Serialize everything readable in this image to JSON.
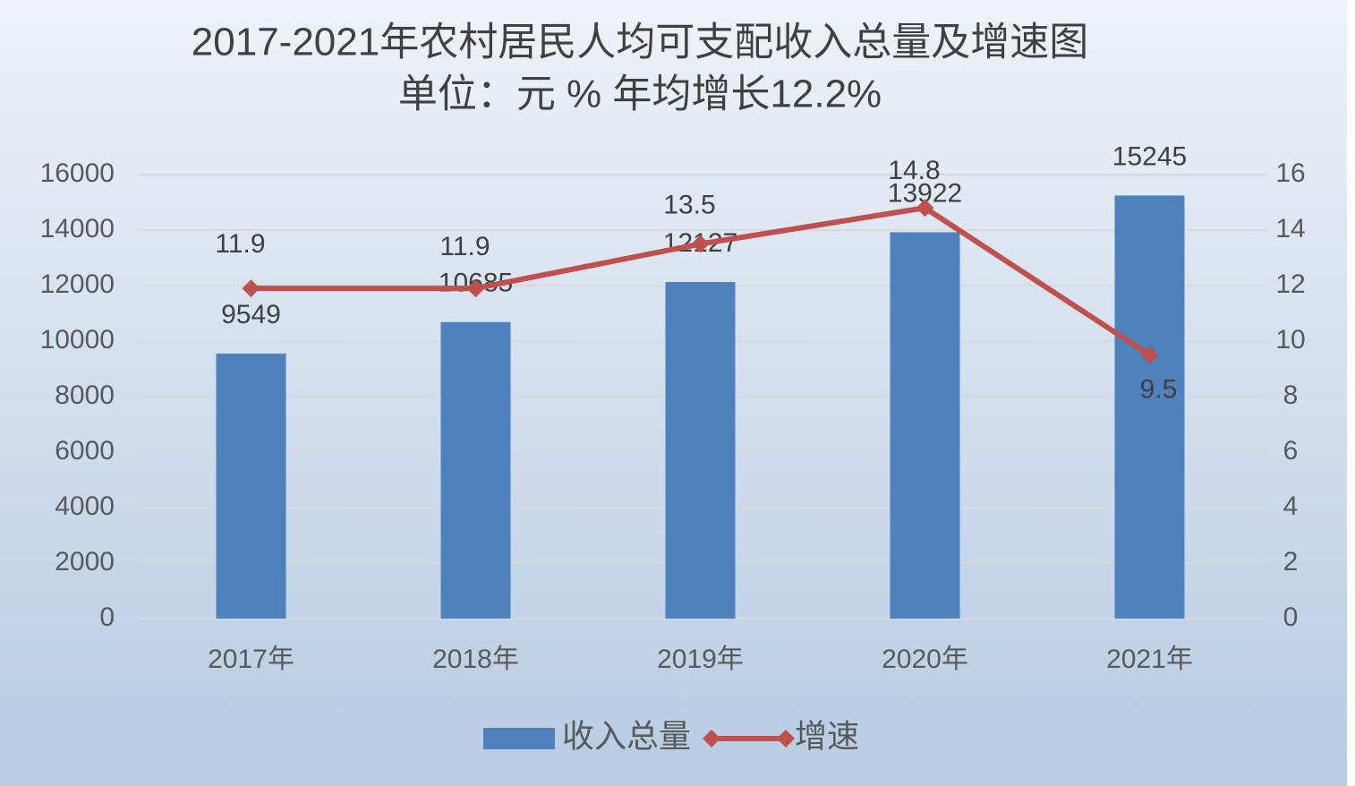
{
  "chart_data": {
    "type": "combo",
    "title": "2017-2021年农村居民人均可支配收入总量及增速图",
    "subtitle": "单位：元 % 年均增长12.2%",
    "categories": [
      "2017年",
      "2018年",
      "2019年",
      "2020年",
      "2021年"
    ],
    "series": [
      {
        "name": "收入总量",
        "type": "bar",
        "color": "#4f81bd",
        "values": [
          9549,
          10685,
          12127,
          13922,
          15245
        ]
      },
      {
        "name": "增速",
        "type": "line",
        "axis": "y2",
        "color": "#c0504d",
        "values": [
          11.9,
          11.9,
          13.5,
          14.8,
          9.5
        ]
      }
    ],
    "ylim": [
      0,
      16000
    ],
    "yticks": [
      0,
      2000,
      4000,
      6000,
      8000,
      10000,
      12000,
      14000,
      16000
    ],
    "y2lim": [
      0,
      16
    ],
    "y2ticks": [
      0,
      2,
      4,
      6,
      8,
      10,
      12,
      14,
      16
    ],
    "grid": true,
    "legend": "bottom"
  }
}
